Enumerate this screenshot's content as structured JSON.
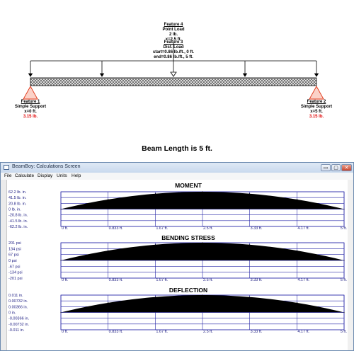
{
  "diagram": {
    "feature4": {
      "title": "Feature 4",
      "lines": [
        "Point Load",
        "2 lb.",
        "x=2.5 ft."
      ]
    },
    "feature3": {
      "title": "Feature 3",
      "lines": [
        "Dist. Load",
        "start=0.86 lb./ft., 0 ft.",
        "end=0.86 lb./ft., 5 ft."
      ]
    },
    "feature1": {
      "title": "Feature 1",
      "lines": [
        "Simple Support",
        "x=0 ft."
      ],
      "reaction": "3.15 lb."
    },
    "feature2": {
      "title": "Feature 2",
      "lines": [
        "Simple Support",
        "x=5 ft."
      ],
      "reaction": "3.15 lb."
    },
    "beam_length": "Beam Length is 5 ft."
  },
  "window": {
    "title": "BeamBoy: Calculations Screen",
    "menu": [
      "File",
      "Calculate",
      "Display",
      "Units",
      "Help"
    ],
    "buttons": {
      "minimize": "▭",
      "maximize": "▢",
      "close": "✕"
    }
  },
  "chart_data": [
    {
      "type": "area",
      "title": "MOMENT",
      "x_ticks": [
        "0 ft.",
        "0.833 ft.",
        "1.67 ft.",
        "2.5 ft.",
        "3.33 ft.",
        "4.17 ft.",
        "5 ft."
      ],
      "y_ticks": [
        "62.2 lb. in.",
        "41.5 lb. in.",
        "20.8 lb. in.",
        "0 lb. in.",
        "-20.8 lb. in.",
        "-41.5 lb. in.",
        "-62.2 lb. in."
      ],
      "x": [
        0,
        0.833,
        1.67,
        2.5,
        3.33,
        4.17,
        5
      ],
      "y": [
        0,
        34.5,
        55.2,
        62.2,
        55.2,
        34.5,
        0
      ],
      "xlim": [
        0,
        5
      ],
      "ylim": [
        -62.2,
        62.2
      ],
      "grid": true
    },
    {
      "type": "area",
      "title": "BENDING STRESS",
      "x_ticks": [
        "0 ft.",
        "0.833 ft.",
        "1.67 ft.",
        "2.5 ft.",
        "3.33 ft.",
        "4.17 ft.",
        "5 ft."
      ],
      "y_ticks": [
        "201 psi",
        "134 psi",
        "67 psi",
        "0 psi",
        "-67 psi",
        "-134 psi",
        "-201 psi"
      ],
      "x": [
        0,
        0.833,
        1.67,
        2.5,
        3.33,
        4.17,
        5
      ],
      "y": [
        0,
        111,
        178,
        201,
        178,
        111,
        0
      ],
      "xlim": [
        0,
        5
      ],
      "ylim": [
        -201,
        201
      ],
      "grid": true
    },
    {
      "type": "area",
      "title": "DEFLECTION",
      "x_ticks": [
        "0 ft.",
        "0.833 ft.",
        "1.67 ft.",
        "2.5 ft.",
        "3.33 ft.",
        "4.17 ft.",
        "5 ft."
      ],
      "y_ticks": [
        "0.011 in.",
        "0.00732 in.",
        "0.00366 in.",
        "0 in.",
        "-0.00366 in.",
        "-0.00732 in.",
        "-0.011 in."
      ],
      "x": [
        0,
        0.833,
        1.67,
        2.5,
        3.33,
        4.17,
        5
      ],
      "y": [
        0,
        -0.0062,
        -0.0098,
        -0.011,
        -0.0098,
        -0.0062,
        0
      ],
      "xlim": [
        0,
        5
      ],
      "ylim": [
        -0.011,
        0.011
      ],
      "grid": true
    }
  ]
}
